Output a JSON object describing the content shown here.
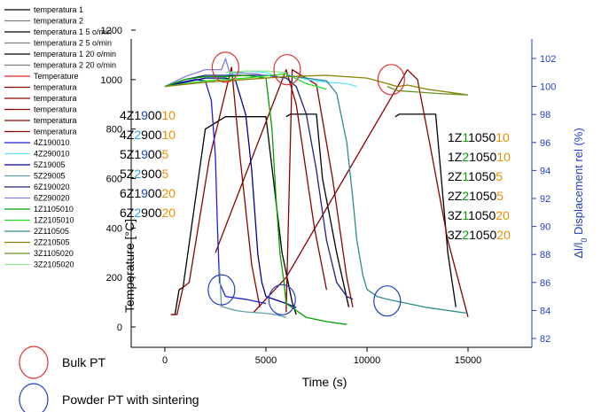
{
  "chart_data": {
    "type": "line",
    "xlabel": "Time (s)",
    "ylabel_left": "Temperature [°C]",
    "ylabel_right_html": "Δl/l0 Displacement rel (%)",
    "ylabel_right": {
      "pre": "Δl/l",
      "sub": "0",
      "post": " Displacement rel (%)"
    },
    "xlim": [
      -2000,
      17500
    ],
    "ylim_left": [
      -100,
      1300
    ],
    "ylim_right": [
      81.2,
      103.6
    ],
    "xticks": [
      0,
      5000,
      10000,
      15000
    ],
    "xtick_labels": [
      "0",
      "5000",
      "10000",
      "15000"
    ],
    "yticks_left": [
      0,
      200,
      400,
      600,
      800,
      1000,
      1200
    ],
    "ytick_labels_left": [
      "0",
      "200",
      "400",
      "600",
      "800",
      "1000",
      "1200"
    ],
    "yticks_right": [
      82,
      84,
      86,
      88,
      90,
      92,
      94,
      96,
      98,
      100,
      102
    ],
    "ytick_labels_right": [
      "82",
      "84",
      "86",
      "88",
      "90",
      "92",
      "94",
      "96",
      "98",
      "100",
      "102"
    ],
    "right_axis_color": "#1f3fc8",
    "legend": [
      {
        "label": "temperatura 1",
        "color": "#000000"
      },
      {
        "label": "temperatura 2",
        "color": "#808080"
      },
      {
        "label": "temperatura 1 5 o/min",
        "color": "#000000"
      },
      {
        "label": "temperatura 2 5 o/min",
        "color": "#808080"
      },
      {
        "label": "temperatura 1 20 o/min",
        "color": "#000000"
      },
      {
        "label": "temperatura 2 20 o/min",
        "color": "#808080"
      },
      {
        "label": "Temperature",
        "color": "#d62728"
      },
      {
        "label": "temperatura",
        "color": "#8b0000"
      },
      {
        "label": "temperatura",
        "color": "#8b0000"
      },
      {
        "label": "temperatura",
        "color": "#8b0000"
      },
      {
        "label": "temperatura",
        "color": "#8b0000"
      },
      {
        "label": "temperatura",
        "color": "#8b0000"
      },
      {
        "label": "4Z190010",
        "color": "#1f1fd0"
      },
      {
        "label": "4Z290010",
        "color": "#66e0ff"
      },
      {
        "label": "5Z19005",
        "color": "#00008b"
      },
      {
        "label": "5Z29005",
        "color": "#5f9ea0"
      },
      {
        "label": "6Z190020",
        "color": "#1a237e"
      },
      {
        "label": "6Z290020",
        "color": "#8080e0"
      },
      {
        "label": "1Z1105010",
        "color": "#00a000"
      },
      {
        "label": "1Z2105010",
        "color": "#22dd22"
      },
      {
        "label": "2Z110505",
        "color": "#2e8b8b"
      },
      {
        "label": "2Z210505",
        "color": "#8b8000"
      },
      {
        "label": "3Z1105020",
        "color": "#6b8e23"
      },
      {
        "label": "3Z2105020",
        "color": "#90ee90"
      }
    ],
    "annotations_left": [
      {
        "parts": [
          [
            "4Z1",
            "#000000"
          ],
          [
            "9",
            "#1f3fc8"
          ],
          [
            "00",
            "#000000"
          ],
          [
            "10",
            "#f28e00"
          ]
        ]
      },
      {
        "parts": [
          [
            "4Z",
            "#000000"
          ],
          [
            "2",
            "#29a3d6"
          ],
          [
            "9",
            "#000000"
          ],
          [
            "00",
            "#000000"
          ],
          [
            "10",
            "#f28e00"
          ]
        ]
      },
      {
        "parts": [
          [
            "5Z1",
            "#000000"
          ],
          [
            "9",
            "#1f3fc8"
          ],
          [
            "00",
            "#000000"
          ],
          [
            "5",
            "#f28e00"
          ]
        ]
      },
      {
        "parts": [
          [
            "5Z",
            "#000000"
          ],
          [
            "2",
            "#29a3d6"
          ],
          [
            "9",
            "#000000"
          ],
          [
            "00",
            "#000000"
          ],
          [
            "5",
            "#f28e00"
          ]
        ]
      },
      {
        "parts": [
          [
            "6Z1",
            "#000000"
          ],
          [
            "9",
            "#1f3fc8"
          ],
          [
            "00",
            "#000000"
          ],
          [
            "20",
            "#f28e00"
          ]
        ]
      },
      {
        "parts": [
          [
            "6Z",
            "#000000"
          ],
          [
            "2",
            "#29a3d6"
          ],
          [
            "9",
            "#000000"
          ],
          [
            "00",
            "#000000"
          ],
          [
            "20",
            "#f28e00"
          ]
        ]
      }
    ],
    "annotations_right": [
      {
        "parts": [
          [
            "1Z",
            "#000000"
          ],
          [
            "1",
            "#00a000"
          ],
          [
            "1",
            "#000000"
          ],
          [
            "050",
            "#000000"
          ],
          [
            "10",
            "#f28e00"
          ]
        ]
      },
      {
        "parts": [
          [
            "1Z",
            "#000000"
          ],
          [
            "2",
            "#00a000"
          ],
          [
            "1",
            "#000000"
          ],
          [
            "050",
            "#000000"
          ],
          [
            "10",
            "#f28e00"
          ]
        ]
      },
      {
        "parts": [
          [
            "2Z",
            "#000000"
          ],
          [
            "1",
            "#00a000"
          ],
          [
            "1050",
            "#000000"
          ],
          [
            "5",
            "#f28e00"
          ]
        ]
      },
      {
        "parts": [
          [
            "2Z",
            "#000000"
          ],
          [
            "2",
            "#00a000"
          ],
          [
            "1050",
            "#000000"
          ],
          [
            "5",
            "#f28e00"
          ]
        ]
      },
      {
        "parts": [
          [
            "3Z",
            "#000000"
          ],
          [
            "1",
            "#00a000"
          ],
          [
            "1050",
            "#000000"
          ],
          [
            "20",
            "#f28e00"
          ]
        ]
      },
      {
        "parts": [
          [
            "3Z",
            "#000000"
          ],
          [
            "2",
            "#00a000"
          ],
          [
            "1050",
            "#000000"
          ],
          [
            "20",
            "#f28e00"
          ]
        ]
      }
    ],
    "bottom_legend": [
      {
        "label": "Bulk PT",
        "color": "#e03030"
      },
      {
        "label": "Powder PT with sintering",
        "color": "#1f3fc8"
      }
    ],
    "circles": [
      {
        "x": 3000,
        "y": 1050,
        "axis": "left",
        "color": "#e03030"
      },
      {
        "x": 6050,
        "y": 1040,
        "axis": "left",
        "color": "#e03030"
      },
      {
        "x": 11200,
        "y": 1000,
        "axis": "left",
        "color": "#e03030"
      },
      {
        "x": 2800,
        "y": 150,
        "axis": "left",
        "color": "#1f3fc8"
      },
      {
        "x": 5800,
        "y": 110,
        "axis": "left",
        "color": "#1f3fc8"
      },
      {
        "x": 11000,
        "y": 105,
        "axis": "left",
        "color": "#1f3fc8"
      }
    ],
    "series": [
      {
        "name": "temperatura 1",
        "axis": "left",
        "color": "#000000",
        "x": [
          300,
          500,
          700,
          900,
          2000,
          3000,
          4000,
          5000,
          5800,
          6300,
          6500
        ],
        "y": [
          50,
          50,
          150,
          160,
          800,
          850,
          850,
          850,
          300,
          100,
          50
        ]
      },
      {
        "name": "temperatura 1 5 o/min",
        "axis": "left",
        "color": "#000000",
        "x": [
          6000,
          6200,
          7500,
          7800,
          8500,
          9100
        ],
        "y": [
          850,
          860,
          860,
          600,
          300,
          80
        ]
      },
      {
        "name": "temperatura 1 20 o/min",
        "axis": "left",
        "color": "#000000",
        "x": [
          11400,
          11600,
          13400,
          14000,
          14400
        ],
        "y": [
          850,
          860,
          860,
          300,
          80
        ]
      },
      {
        "name": "Temperature",
        "axis": "left",
        "color": "#8b0000",
        "x": [
          300,
          600,
          900,
          1200,
          2200,
          3300,
          3700,
          4300,
          4700
        ],
        "y": [
          50,
          50,
          160,
          180,
          680,
          1050,
          700,
          250,
          80
        ]
      },
      {
        "name": "temperatura",
        "axis": "left",
        "color": "#8b0000",
        "x": [
          2500,
          6000,
          6500,
          7400,
          8000
        ],
        "y": [
          300,
          1040,
          900,
          400,
          150
        ]
      },
      {
        "name": "temperatura",
        "axis": "left",
        "color": "#8b0000",
        "x": [
          4400,
          6000,
          12000,
          12500,
          13200,
          14000,
          15000
        ],
        "y": [
          60,
          200,
          1040,
          1000,
          700,
          350,
          40
        ]
      },
      {
        "name": "temperatura",
        "axis": "left",
        "color": "#8b0000",
        "x": [
          6000,
          6300,
          7500,
          8300,
          9000,
          9300
        ],
        "y": [
          60,
          1040,
          980,
          600,
          200,
          80
        ]
      },
      {
        "name": "4Z190010",
        "axis": "right",
        "color": "#1f1fd0",
        "x": [
          0,
          500,
          1500,
          2000,
          2300,
          2500,
          2600,
          2700,
          3000,
          4000,
          5000
        ],
        "y": [
          100,
          100.2,
          100.5,
          100.4,
          99,
          95,
          90,
          86,
          85,
          84.8,
          84.5
        ]
      },
      {
        "name": "4Z290010",
        "axis": "right",
        "color": "#66e0ff",
        "x": [
          3000,
          4000,
          5000,
          5800,
          6200,
          7000,
          8000,
          9000,
          9500
        ],
        "y": [
          100.8,
          101.1,
          101,
          100.6,
          100.8,
          100.5,
          100.3,
          100.2,
          100
        ]
      },
      {
        "name": "5Z19005",
        "axis": "right",
        "color": "#00008b",
        "x": [
          0,
          1000,
          2000,
          3000,
          3500,
          4000,
          4300,
          4600,
          4800,
          5000,
          6000,
          6500
        ],
        "y": [
          100,
          100.3,
          100.6,
          100.6,
          100.4,
          98,
          94,
          88,
          86,
          85,
          84.5,
          84.2
        ]
      },
      {
        "name": "5Z29005",
        "axis": "right",
        "color": "#5f9ea0",
        "x": [
          2700,
          2800,
          3000,
          3500,
          4000,
          5000,
          5500,
          6000
        ],
        "y": [
          87,
          84.3,
          84.2,
          84,
          83.9,
          83.8,
          83.7,
          83.5
        ]
      },
      {
        "name": "6Z190020",
        "axis": "right",
        "color": "#1a237e",
        "x": [
          0,
          1000,
          2000,
          3000,
          4000,
          5000,
          6000,
          6500,
          7000,
          7500,
          8000,
          8500,
          9000,
          9300
        ],
        "y": [
          100,
          100.5,
          100.8,
          100.8,
          100.8,
          100.8,
          100.6,
          100,
          98,
          94,
          89,
          86,
          85,
          84.8
        ]
      },
      {
        "name": "6Z290020",
        "axis": "right",
        "color": "#8080e0",
        "x": [
          0,
          1000,
          2000,
          2800,
          3000,
          3200,
          3500,
          4500,
          5000
        ],
        "y": [
          100,
          100.7,
          101.2,
          101.2,
          102,
          101,
          101,
          100.9,
          100.8
        ]
      },
      {
        "name": "1Z1105010",
        "axis": "right",
        "color": "#00a000",
        "x": [
          0,
          1000,
          2000,
          3000,
          4000,
          5000,
          5300,
          5500,
          5700,
          5900,
          6000,
          7000,
          8000,
          9000
        ],
        "y": [
          100,
          100.5,
          100.7,
          100.7,
          100.8,
          100.6,
          97,
          92,
          88,
          86,
          84.5,
          83.5,
          83.2,
          83
        ]
      },
      {
        "name": "1Z2105010",
        "axis": "right",
        "color": "#22dd22",
        "x": [
          0,
          2000,
          4000,
          6000,
          7000,
          8000
        ],
        "y": [
          100,
          100.4,
          100.6,
          100.9,
          100.2,
          99.8
        ]
      },
      {
        "name": "2Z110505",
        "axis": "right",
        "color": "#2e8b8b",
        "x": [
          6000,
          7000,
          8000,
          8500,
          9000,
          9300,
          9500,
          9800,
          10000,
          10500,
          11000,
          12000,
          13000,
          14000,
          15000
        ],
        "y": [
          100.8,
          100.6,
          100.4,
          99.5,
          96,
          92,
          89,
          86.5,
          85.5,
          85,
          84.8,
          84.5,
          84.2,
          84,
          83.8
        ]
      },
      {
        "name": "2Z210505",
        "axis": "right",
        "color": "#8b8000",
        "x": [
          0,
          2000,
          4000,
          6000,
          8000,
          10000,
          11000,
          11500,
          12000,
          13000,
          14000,
          15000
        ],
        "y": [
          100,
          100.3,
          100.5,
          100.7,
          100.8,
          100.6,
          100.2,
          100,
          100.1,
          99.8,
          99.6,
          99.4
        ]
      },
      {
        "name": "3Z1105020",
        "axis": "right",
        "color": "#6b8e23",
        "x": [
          11000,
          11500,
          12500,
          13500,
          15000
        ],
        "y": [
          100,
          99.7,
          99.6,
          99.5,
          99.4
        ]
      },
      {
        "name": "3Z2105020",
        "axis": "right",
        "color": "#90ee90",
        "x": [
          3000,
          4000,
          5000,
          6000
        ],
        "y": [
          101,
          101.1,
          101.1,
          101
        ]
      }
    ]
  }
}
